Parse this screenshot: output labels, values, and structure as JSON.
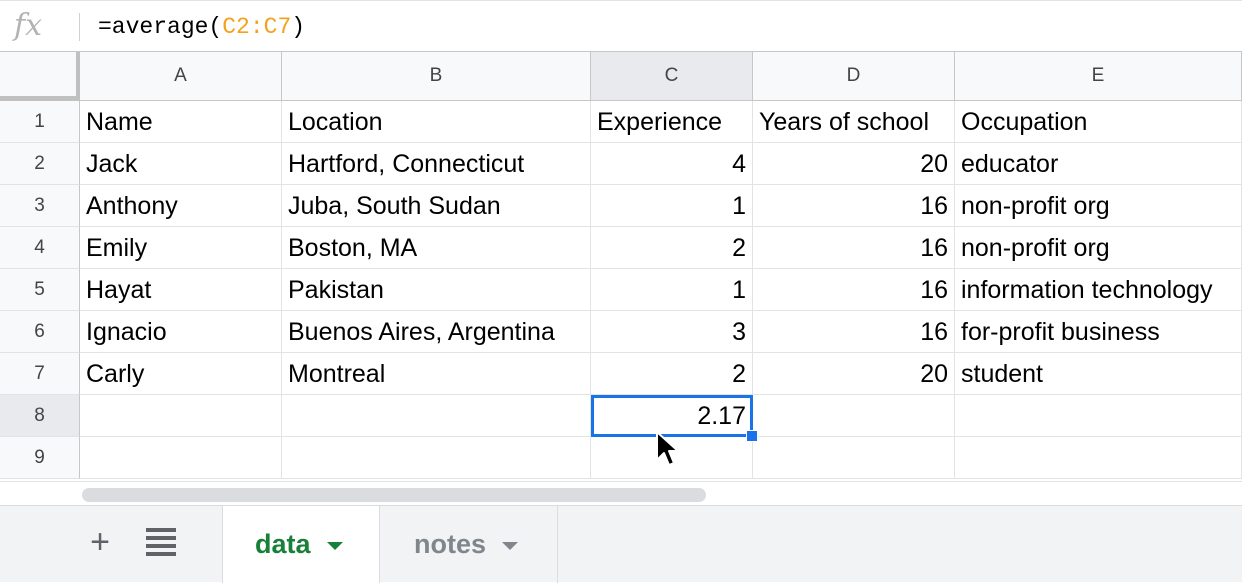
{
  "formula": {
    "prefix": "=average(",
    "range": "C2:C7",
    "suffix": ")"
  },
  "columns": [
    "A",
    "B",
    "C",
    "D",
    "E"
  ],
  "rows": [
    "1",
    "2",
    "3",
    "4",
    "5",
    "6",
    "7",
    "8",
    "9"
  ],
  "cells": [
    [
      "Name",
      "Location",
      "Experience",
      "Years of school",
      "Occupation"
    ],
    [
      "Jack",
      "Hartford, Connecticut",
      "4",
      "20",
      "educator"
    ],
    [
      "Anthony",
      "Juba, South Sudan",
      "1",
      "16",
      "non-profit org"
    ],
    [
      "Emily",
      "Boston, MA",
      "2",
      "16",
      "non-profit org"
    ],
    [
      "Hayat",
      "Pakistan",
      "1",
      "16",
      "information technology"
    ],
    [
      "Ignacio",
      "Buenos Aires, Argentina",
      "3",
      "16",
      "for-profit business"
    ],
    [
      "Carly",
      "Montreal",
      "2",
      "20",
      "student"
    ],
    [
      "",
      "",
      "2.17",
      "",
      ""
    ],
    [
      "",
      "",
      "",
      "",
      ""
    ]
  ],
  "active_cell": "C8",
  "sheets": [
    {
      "label": "data",
      "active": true
    },
    {
      "label": "notes",
      "active": false
    }
  ],
  "icons": {
    "fx": "fx",
    "add_sheet": "+"
  },
  "colors": {
    "accent": "#1a73e8",
    "active_tab": "#188038",
    "range_ref": "#f4a11b"
  }
}
